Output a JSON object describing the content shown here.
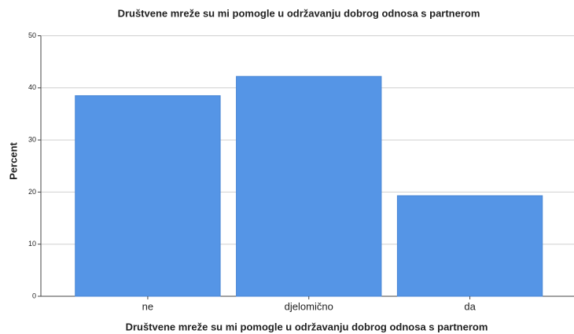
{
  "chart_data": {
    "type": "bar",
    "title": "Društvene mreže su mi pomogle u održavanju dobrog odnosa s partnerom",
    "x_label": "Društvene mreže su mi pomogle u održavanju dobrog odnosa s partnerom",
    "y_label": "Percent",
    "categories": [
      "ne",
      "djelomično",
      "da"
    ],
    "values": [
      38.5,
      42.2,
      19.3
    ],
    "color": "#5595e6",
    "ylim": [
      0,
      50
    ],
    "yticks": [
      0,
      10,
      20,
      30,
      40,
      50
    ],
    "grid": true
  }
}
